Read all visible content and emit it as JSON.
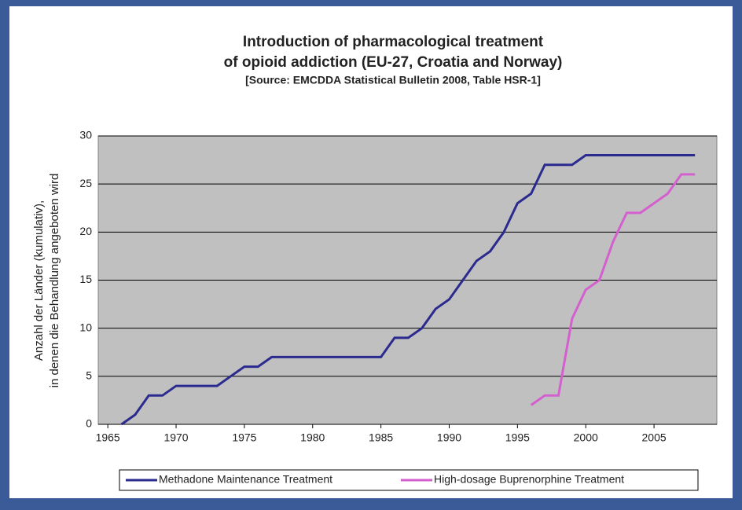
{
  "chart_data": {
    "type": "line",
    "title": "Introduction of pharmacological treatment",
    "title_line2": "of opioid addiction (EU-27, Croatia and Norway)",
    "subtitle": "[Source: EMCDDA Statistical Bulletin 2008, Table HSR-1]",
    "y_label": "Anzahl der Länder (kumulativ),",
    "y_label_line2": "in denen die Behandlung angeboten wird",
    "x": [
      1966,
      1967,
      1968,
      1969,
      1970,
      1971,
      1972,
      1973,
      1974,
      1975,
      1976,
      1977,
      1978,
      1979,
      1980,
      1981,
      1982,
      1983,
      1984,
      1985,
      1986,
      1987,
      1988,
      1989,
      1990,
      1991,
      1992,
      1993,
      1994,
      1995,
      1996,
      1997,
      1998,
      1999,
      2000,
      2001,
      2002,
      2003,
      2004,
      2005,
      2006,
      2007,
      2008
    ],
    "series": [
      {
        "name": "Methadone Maintenance Treatment",
        "color": "#2b2b8f",
        "values": [
          0,
          1,
          3,
          3,
          4,
          4,
          4,
          4,
          5,
          6,
          6,
          7,
          7,
          7,
          7,
          7,
          7,
          7,
          7,
          7,
          9,
          9,
          10,
          12,
          13,
          15,
          17,
          18,
          20,
          23,
          24,
          27,
          27,
          27,
          28,
          28,
          28,
          28,
          28,
          28,
          28,
          28,
          28
        ]
      },
      {
        "name": "High-dosage Buprenorphine Treatment",
        "color": "#d45fcf",
        "values": [
          null,
          null,
          null,
          null,
          null,
          null,
          null,
          null,
          null,
          null,
          null,
          null,
          null,
          null,
          null,
          null,
          null,
          null,
          null,
          null,
          null,
          null,
          null,
          null,
          null,
          null,
          null,
          null,
          null,
          null,
          2,
          3,
          3,
          11,
          14,
          15,
          19,
          22,
          22,
          23,
          24,
          26,
          26
        ]
      }
    ],
    "xlim": [
      1964.3,
      2009.6
    ],
    "xticks": [
      1965,
      1970,
      1975,
      1980,
      1985,
      1990,
      1995,
      2000,
      2005
    ],
    "ylim": [
      0,
      30
    ],
    "yticks": [
      0,
      5,
      10,
      15,
      20,
      25,
      30
    ],
    "grid": true,
    "legend": "bottom"
  }
}
